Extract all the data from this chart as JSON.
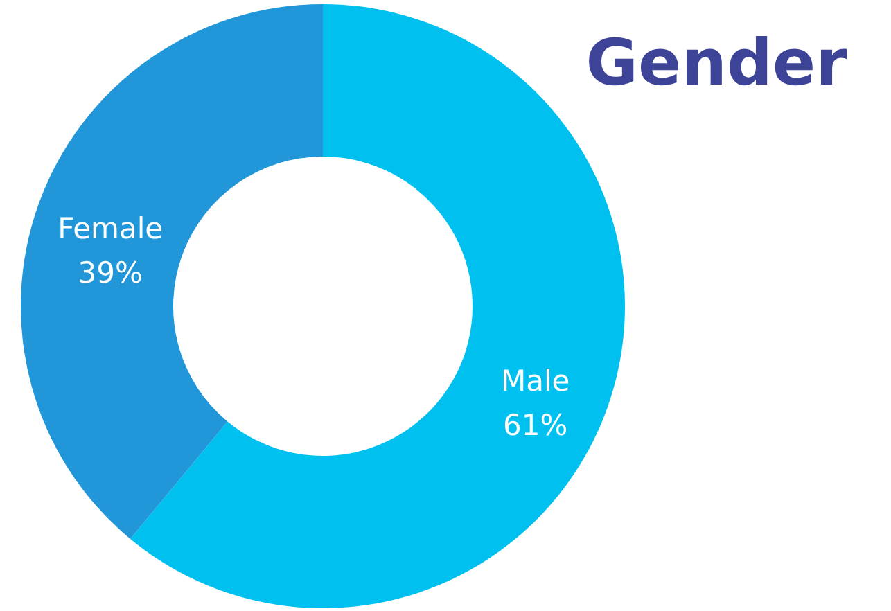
{
  "chart_data": {
    "type": "donut",
    "title": "Gender",
    "categories": [
      "Male",
      "Female"
    ],
    "values": [
      61,
      39
    ],
    "colors": [
      "#00c0f0",
      "#2196d8"
    ],
    "value_labels": [
      "61%",
      "39%"
    ]
  }
}
